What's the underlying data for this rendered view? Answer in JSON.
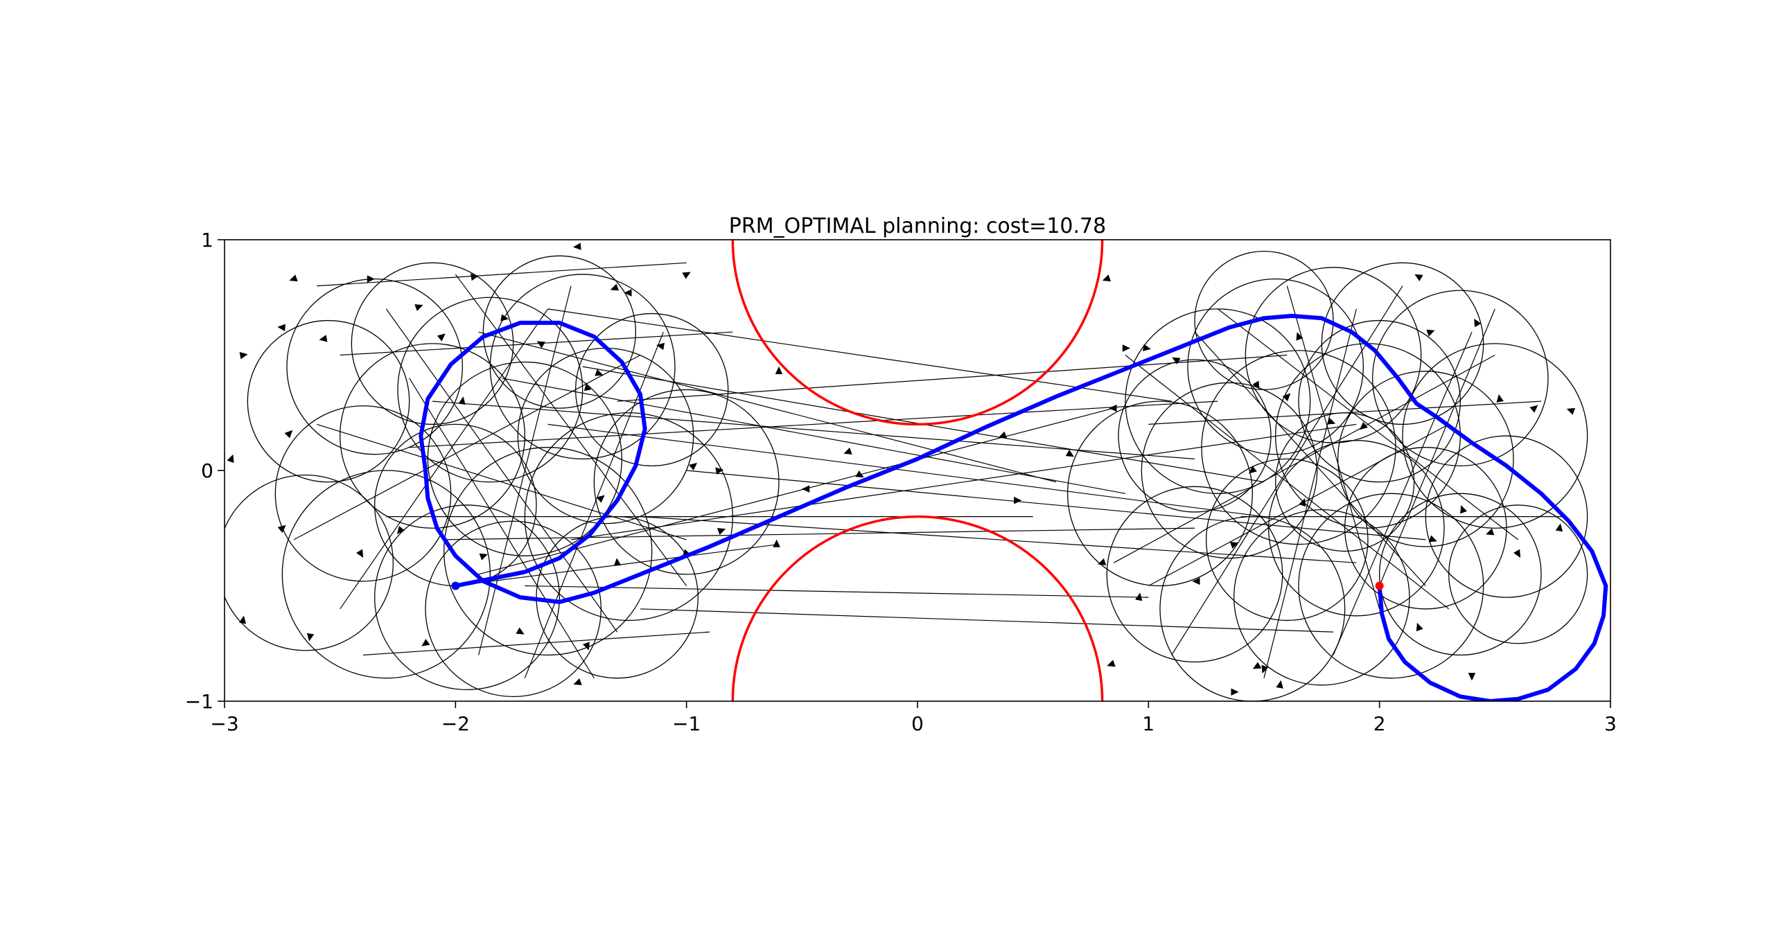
{
  "chart_data": {
    "type": "line",
    "title": "PRM_OPTIMAL planning: cost=10.78",
    "xlabel": "",
    "ylabel": "",
    "xlim": [
      -3,
      3
    ],
    "ylim": [
      -1,
      1
    ],
    "xticks": [
      -3,
      -2,
      -1,
      0,
      1,
      2,
      3
    ],
    "yticks": [
      -1,
      0,
      1
    ],
    "xtick_labels": [
      "−3",
      "−2",
      "−1",
      "0",
      "1",
      "2",
      "3"
    ],
    "ytick_labels": [
      "−1",
      "0",
      "1"
    ],
    "grid": false,
    "colors": {
      "obstacle": "#ff0000",
      "path": "#0000ff",
      "roadmap": "#000000",
      "goal": "#ff0000"
    },
    "obstacles": [
      {
        "name": "upper-obstacle",
        "center": [
          0,
          1
        ],
        "radius": 0.8
      },
      {
        "name": "lower-obstacle",
        "center": [
          0,
          -1
        ],
        "radius": 0.8
      }
    ],
    "start": [
      -2.0,
      -0.5
    ],
    "goal": [
      2.0,
      -0.5
    ],
    "turning_radius": 0.35,
    "roadmap_nodes": [
      [
        -2.7,
        0.83,
        200
      ],
      [
        -2.57,
        0.57,
        190
      ],
      [
        -2.92,
        0.5,
        10
      ],
      [
        -2.75,
        0.62,
        175
      ],
      [
        -2.97,
        0.05,
        70
      ],
      [
        -2.72,
        0.16,
        45
      ],
      [
        -2.75,
        -0.25,
        40
      ],
      [
        -2.92,
        -0.65,
        80
      ],
      [
        -2.63,
        -0.72,
        260
      ],
      [
        -2.41,
        -0.36,
        300
      ],
      [
        -2.24,
        -0.26,
        230
      ],
      [
        -2.13,
        -0.75,
        215
      ],
      [
        -2.37,
        0.83,
        0
      ],
      [
        -2.16,
        0.71,
        20
      ],
      [
        -2.06,
        0.58,
        40
      ],
      [
        -1.92,
        0.84,
        10
      ],
      [
        -1.79,
        0.66,
        350
      ],
      [
        -1.97,
        0.3,
        80
      ],
      [
        -1.63,
        0.55,
        150
      ],
      [
        -1.47,
        0.97,
        185
      ],
      [
        -1.31,
        0.79,
        200
      ],
      [
        -1.25,
        0.77,
        180
      ],
      [
        -1.38,
        0.42,
        340
      ],
      [
        -1.11,
        0.54,
        170
      ],
      [
        -1.0,
        0.85,
        30
      ],
      [
        -1.43,
        0.36,
        100
      ],
      [
        -1.37,
        -0.12,
        40
      ],
      [
        -1.3,
        -0.4,
        95
      ],
      [
        -1.43,
        -0.76,
        290
      ],
      [
        -1.47,
        -0.92,
        200
      ],
      [
        -1.72,
        -0.7,
        330
      ],
      [
        -1.88,
        -0.37,
        20
      ],
      [
        -0.97,
        0.02,
        40
      ],
      [
        -0.86,
        0.0,
        10
      ],
      [
        -1.0,
        -0.36,
        340
      ],
      [
        -0.85,
        -0.26,
        20
      ],
      [
        -0.6,
        0.43,
        90
      ],
      [
        -0.61,
        -0.32,
        90
      ],
      [
        -0.48,
        -0.08,
        180
      ],
      [
        -0.3,
        0.08,
        200
      ],
      [
        -0.25,
        -0.02,
        330
      ],
      [
        0.37,
        0.15,
        200
      ],
      [
        0.43,
        -0.13,
        0
      ],
      [
        0.82,
        0.83,
        200
      ],
      [
        0.84,
        -0.84,
        200
      ],
      [
        0.85,
        0.27,
        180
      ],
      [
        0.9,
        0.53,
        0
      ],
      [
        0.99,
        0.53,
        350
      ],
      [
        0.8,
        -0.4,
        200
      ],
      [
        0.96,
        -0.55,
        80
      ],
      [
        1.21,
        -0.48,
        180
      ],
      [
        1.37,
        -0.32,
        20
      ],
      [
        1.47,
        -0.85,
        210
      ],
      [
        1.5,
        -0.86,
        250
      ],
      [
        1.57,
        -0.93,
        80
      ],
      [
        1.37,
        -0.96,
        0
      ],
      [
        1.65,
        0.58,
        110
      ],
      [
        1.47,
        0.37,
        300
      ],
      [
        1.6,
        0.32,
        45
      ],
      [
        1.67,
        -0.14,
        70
      ],
      [
        1.79,
        0.21,
        340
      ],
      [
        1.93,
        0.19,
        220
      ],
      [
        2.17,
        0.84,
        150
      ],
      [
        2.22,
        0.6,
        20
      ],
      [
        2.42,
        0.64,
        120
      ],
      [
        2.52,
        0.31,
        100
      ],
      [
        2.67,
        0.27,
        40
      ],
      [
        2.83,
        0.26,
        160
      ],
      [
        2.23,
        -0.3,
        340
      ],
      [
        2.36,
        -0.17,
        110
      ],
      [
        2.48,
        -0.27,
        200
      ],
      [
        2.6,
        -0.36,
        300
      ],
      [
        2.78,
        -0.25,
        80
      ],
      [
        2.4,
        -0.89,
        270
      ],
      [
        2.17,
        -0.68,
        110
      ],
      [
        1.45,
        0.0,
        220
      ],
      [
        0.66,
        0.07,
        330
      ],
      [
        1.12,
        0.48,
        150
      ]
    ],
    "roadmap_circles": [
      [
        -2.55,
        0.3,
        0.35
      ],
      [
        -2.35,
        0.45,
        0.38
      ],
      [
        -2.1,
        0.55,
        0.35
      ],
      [
        -1.85,
        0.35,
        0.4
      ],
      [
        -1.45,
        0.45,
        0.4
      ],
      [
        -1.7,
        0.05,
        0.42
      ],
      [
        -2.4,
        -0.1,
        0.38
      ],
      [
        -2.3,
        -0.45,
        0.45
      ],
      [
        -1.95,
        -0.55,
        0.4
      ],
      [
        -1.6,
        -0.35,
        0.45
      ],
      [
        -1.25,
        -0.2,
        0.45
      ],
      [
        -1.0,
        -0.05,
        0.4
      ],
      [
        -1.35,
        0.15,
        0.38
      ],
      [
        -2.0,
        -0.15,
        0.35
      ],
      [
        -1.75,
        -0.6,
        0.38
      ],
      [
        -1.3,
        -0.55,
        0.35
      ],
      [
        -2.1,
        0.15,
        0.4
      ],
      [
        -1.55,
        0.6,
        0.33
      ],
      [
        -1.15,
        0.35,
        0.33
      ],
      [
        -2.65,
        -0.4,
        0.38
      ],
      [
        1.3,
        0.3,
        0.4
      ],
      [
        1.55,
        0.45,
        0.38
      ],
      [
        1.8,
        0.5,
        0.38
      ],
      [
        2.1,
        0.55,
        0.35
      ],
      [
        2.35,
        0.4,
        0.38
      ],
      [
        2.5,
        0.15,
        0.4
      ],
      [
        2.55,
        -0.2,
        0.35
      ],
      [
        2.35,
        -0.45,
        0.35
      ],
      [
        2.05,
        -0.5,
        0.4
      ],
      [
        1.75,
        -0.55,
        0.38
      ],
      [
        1.45,
        -0.6,
        0.4
      ],
      [
        1.2,
        -0.45,
        0.38
      ],
      [
        1.05,
        -0.1,
        0.4
      ],
      [
        1.35,
        0.0,
        0.38
      ],
      [
        1.65,
        0.1,
        0.42
      ],
      [
        1.95,
        0.15,
        0.4
      ],
      [
        2.2,
        0.05,
        0.38
      ],
      [
        1.6,
        -0.3,
        0.35
      ],
      [
        1.9,
        -0.25,
        0.38
      ],
      [
        2.2,
        -0.25,
        0.35
      ],
      [
        1.5,
        0.65,
        0.3
      ],
      [
        2.0,
        0.3,
        0.35
      ],
      [
        1.2,
        0.15,
        0.33
      ],
      [
        2.6,
        -0.45,
        0.3
      ],
      [
        1.85,
        -0.05,
        0.3
      ]
    ],
    "roadmap_edges": [
      [
        -2.0,
        -0.5,
        -0.6,
        -0.32
      ],
      [
        -1.9,
        -0.45,
        0.85,
        0.27
      ],
      [
        -2.1,
        0.3,
        1.2,
        0.05
      ],
      [
        -1.8,
        0.4,
        0.9,
        -0.1
      ],
      [
        -1.6,
        0.2,
        1.5,
        -0.2
      ],
      [
        -2.2,
        0.1,
        1.3,
        0.3
      ],
      [
        -1.5,
        -0.3,
        1.9,
        0.2
      ],
      [
        -1.3,
        0.3,
        1.6,
        0.5
      ],
      [
        -1.7,
        -0.5,
        1.0,
        -0.55
      ],
      [
        -1.2,
        -0.6,
        1.8,
        -0.7
      ],
      [
        -2.3,
        -0.2,
        0.5,
        -0.2
      ],
      [
        -1.0,
        0.0,
        2.2,
        -0.3
      ],
      [
        -1.45,
        0.45,
        1.5,
        -0.05
      ],
      [
        -2.5,
        0.5,
        -0.8,
        0.6
      ],
      [
        -2.6,
        0.8,
        -1.0,
        0.9
      ],
      [
        -2.4,
        -0.8,
        -0.9,
        -0.7
      ],
      [
        -1.9,
        0.6,
        0.6,
        -0.05
      ],
      [
        -1.2,
        -0.2,
        1.9,
        -0.4
      ],
      [
        -2.05,
        -0.3,
        1.2,
        -0.25
      ],
      [
        -1.6,
        0.7,
        1.1,
        0.3
      ],
      [
        -2.7,
        -0.3,
        -1.2,
        0.5
      ],
      [
        -2.3,
        0.7,
        -1.3,
        -0.7
      ],
      [
        -1.9,
        -0.8,
        -1.5,
        0.8
      ],
      [
        -2.6,
        0.2,
        -1.0,
        -0.3
      ],
      [
        -1.4,
        -0.9,
        -2.2,
        0.4
      ],
      [
        -2.0,
        0.85,
        -1.0,
        -0.5
      ],
      [
        -1.7,
        -0.9,
        -1.1,
        0.6
      ],
      [
        -2.5,
        -0.6,
        -1.6,
        0.7
      ],
      [
        0.9,
        0.5,
        2.3,
        -0.6
      ],
      [
        1.1,
        -0.8,
        2.1,
        0.8
      ],
      [
        1.3,
        0.7,
        2.6,
        -0.3
      ],
      [
        1.0,
        0.2,
        2.7,
        0.3
      ],
      [
        1.5,
        -0.9,
        1.9,
        0.7
      ],
      [
        1.8,
        -0.8,
        2.4,
        0.6
      ],
      [
        1.2,
        0.6,
        2.2,
        -0.5
      ],
      [
        0.85,
        -0.4,
        2.5,
        0.5
      ],
      [
        1.4,
        -0.2,
        2.8,
        -0.2
      ],
      [
        1.6,
        0.8,
        2.0,
        -0.6
      ],
      [
        1.0,
        -0.5,
        2.3,
        0.2
      ],
      [
        2.0,
        -0.5,
        2.5,
        0.7
      ]
    ],
    "path": [
      [
        -2.0,
        -0.5
      ],
      [
        -1.85,
        -0.47
      ],
      [
        -1.7,
        -0.44
      ],
      [
        -1.55,
        -0.38
      ],
      [
        -1.42,
        -0.28
      ],
      [
        -1.3,
        -0.13
      ],
      [
        -1.22,
        0.02
      ],
      [
        -1.18,
        0.18
      ],
      [
        -1.2,
        0.33
      ],
      [
        -1.28,
        0.47
      ],
      [
        -1.4,
        0.58
      ],
      [
        -1.55,
        0.64
      ],
      [
        -1.72,
        0.64
      ],
      [
        -1.88,
        0.58
      ],
      [
        -2.02,
        0.46
      ],
      [
        -2.12,
        0.31
      ],
      [
        -2.15,
        0.15
      ],
      [
        -2.13,
        0.0
      ],
      [
        -2.12,
        -0.12
      ],
      [
        -2.08,
        -0.25
      ],
      [
        -2.0,
        -0.37
      ],
      [
        -1.88,
        -0.48
      ],
      [
        -1.72,
        -0.55
      ],
      [
        -1.55,
        -0.57
      ],
      [
        -1.4,
        -0.53
      ],
      [
        -1.2,
        -0.45
      ],
      [
        -0.9,
        -0.33
      ],
      [
        -0.6,
        -0.2
      ],
      [
        -0.3,
        -0.07
      ],
      [
        0.0,
        0.05
      ],
      [
        0.3,
        0.19
      ],
      [
        0.6,
        0.32
      ],
      [
        0.9,
        0.44
      ],
      [
        1.15,
        0.54
      ],
      [
        1.35,
        0.62
      ],
      [
        1.5,
        0.66
      ],
      [
        1.62,
        0.67
      ],
      [
        1.75,
        0.66
      ],
      [
        1.88,
        0.6
      ],
      [
        1.98,
        0.52
      ],
      [
        2.08,
        0.4
      ],
      [
        2.16,
        0.29
      ],
      [
        2.25,
        0.23
      ],
      [
        2.4,
        0.12
      ],
      [
        2.55,
        0.02
      ],
      [
        2.7,
        -0.1
      ],
      [
        2.82,
        -0.22
      ],
      [
        2.92,
        -0.35
      ],
      [
        2.98,
        -0.5
      ],
      [
        2.97,
        -0.63
      ],
      [
        2.93,
        -0.75
      ],
      [
        2.85,
        -0.86
      ],
      [
        2.73,
        -0.95
      ],
      [
        2.6,
        -0.99
      ],
      [
        2.48,
        -1.0
      ],
      [
        2.35,
        -0.98
      ],
      [
        2.22,
        -0.92
      ],
      [
        2.11,
        -0.83
      ],
      [
        2.04,
        -0.73
      ],
      [
        2.01,
        -0.62
      ],
      [
        2.0,
        -0.5
      ]
    ]
  }
}
